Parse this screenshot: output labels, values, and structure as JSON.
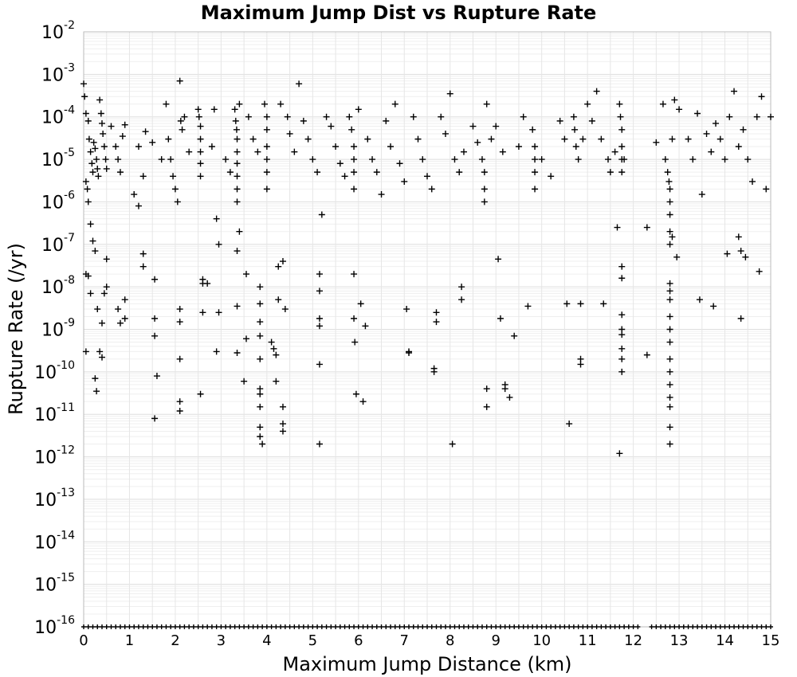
{
  "chart_data": {
    "type": "scatter",
    "title": "Maximum Jump Dist vs Rupture Rate",
    "xlabel": "Maximum Jump Distance (km)",
    "ylabel": "Rupture Rate (/yr)",
    "xlim": [
      0,
      15
    ],
    "ylim": [
      1e-16,
      0.01
    ],
    "yscale": "log",
    "grid": true,
    "marker": "+",
    "marker_color": "#000000",
    "x_ticks": [
      0,
      1,
      2,
      3,
      4,
      5,
      6,
      7,
      8,
      9,
      10,
      11,
      12,
      13,
      14,
      15
    ],
    "x_tick_labels": [
      "0",
      "1",
      "2",
      "3",
      "4",
      "5",
      "6",
      "7",
      "8",
      "9",
      "10",
      "11",
      "12",
      "13",
      "14",
      "15"
    ],
    "y_tick_exponents": [
      -2,
      -3,
      -4,
      -5,
      -6,
      -7,
      -8,
      -9,
      -10,
      -11,
      -12,
      -13,
      -14,
      -15,
      -16
    ],
    "y_tick_base": "10",
    "points": [
      [
        0.0,
        0.0006
      ],
      [
        0.02,
        0.0003
      ],
      [
        0.05,
        0.00012
      ],
      [
        0.1,
        8e-05
      ],
      [
        0.12,
        3e-05
      ],
      [
        0.15,
        1.5e-05
      ],
      [
        0.18,
        8e-06
      ],
      [
        0.2,
        5e-06
      ],
      [
        0.22,
        2.5e-05
      ],
      [
        0.25,
        1.8e-05
      ],
      [
        0.28,
        1e-05
      ],
      [
        0.3,
        6e-06
      ],
      [
        0.32,
        4e-06
      ],
      [
        0.35,
        0.00025
      ],
      [
        0.38,
        0.00012
      ],
      [
        0.4,
        7e-05
      ],
      [
        0.42,
        4e-05
      ],
      [
        0.45,
        2e-05
      ],
      [
        0.48,
        1e-05
      ],
      [
        0.5,
        6e-06
      ],
      [
        0.05,
        3e-06
      ],
      [
        0.08,
        2e-06
      ],
      [
        0.1,
        1e-06
      ],
      [
        0.15,
        3e-07
      ],
      [
        0.2,
        1.2e-07
      ],
      [
        0.25,
        7e-08
      ],
      [
        0.05,
        2e-08
      ],
      [
        0.1,
        1.8e-08
      ],
      [
        0.15,
        7e-09
      ],
      [
        0.3,
        3e-09
      ],
      [
        0.4,
        1.4e-09
      ],
      [
        0.05,
        3e-10
      ],
      [
        0.4,
        2.2e-10
      ],
      [
        0.35,
        3e-10
      ],
      [
        0.25,
        7e-11
      ],
      [
        0.28,
        3.5e-11
      ],
      [
        0.5,
        4.5e-08
      ],
      [
        0.5,
        1e-08
      ],
      [
        0.45,
        7e-09
      ],
      [
        0.6,
        6e-05
      ],
      [
        0.7,
        2e-05
      ],
      [
        0.75,
        1e-05
      ],
      [
        0.8,
        5e-06
      ],
      [
        0.85,
        3.5e-05
      ],
      [
        0.9,
        6.5e-05
      ],
      [
        0.75,
        3e-09
      ],
      [
        0.8,
        1.4e-09
      ],
      [
        0.9,
        5e-09
      ],
      [
        0.9,
        1.8e-09
      ],
      [
        1.1,
        1.5e-06
      ],
      [
        1.2,
        8e-07
      ],
      [
        1.3,
        6e-08
      ],
      [
        1.3,
        3e-08
      ],
      [
        1.3,
        4e-06
      ],
      [
        1.2,
        2e-05
      ],
      [
        1.35,
        4.5e-05
      ],
      [
        1.5,
        2.5e-05
      ],
      [
        1.55,
        1.5e-08
      ],
      [
        1.55,
        1.8e-09
      ],
      [
        1.55,
        7e-10
      ],
      [
        1.6,
        8e-11
      ],
      [
        1.55,
        8e-12
      ],
      [
        1.7,
        1e-05
      ],
      [
        1.8,
        0.0002
      ],
      [
        1.85,
        3e-05
      ],
      [
        1.9,
        1e-05
      ],
      [
        1.95,
        4e-06
      ],
      [
        2.0,
        2e-06
      ],
      [
        2.05,
        1e-06
      ],
      [
        2.1,
        0.0007
      ],
      [
        2.12,
        8e-05
      ],
      [
        2.15,
        5e-05
      ],
      [
        2.1,
        3e-09
      ],
      [
        2.1,
        1.5e-09
      ],
      [
        2.1,
        2e-10
      ],
      [
        2.1,
        2e-11
      ],
      [
        2.1,
        1.2e-11
      ],
      [
        2.2,
        0.0001
      ],
      [
        2.3,
        1.5e-05
      ],
      [
        2.5,
        0.00015
      ],
      [
        2.52,
        0.0001
      ],
      [
        2.55,
        6e-05
      ],
      [
        2.55,
        3e-05
      ],
      [
        2.55,
        1.5e-05
      ],
      [
        2.55,
        8e-06
      ],
      [
        2.55,
        4e-06
      ],
      [
        2.6,
        1.5e-08
      ],
      [
        2.6,
        1.2e-08
      ],
      [
        2.6,
        2.5e-09
      ],
      [
        2.55,
        3e-11
      ],
      [
        2.7,
        1.2e-08
      ],
      [
        2.8,
        2e-05
      ],
      [
        2.85,
        0.00015
      ],
      [
        2.9,
        4e-07
      ],
      [
        2.9,
        3e-10
      ],
      [
        2.95,
        1e-07
      ],
      [
        2.95,
        2.5e-09
      ],
      [
        3.1,
        1e-05
      ],
      [
        3.2,
        5e-06
      ],
      [
        3.3,
        0.00015
      ],
      [
        3.32,
        8e-05
      ],
      [
        3.34,
        5e-05
      ],
      [
        3.35,
        3e-05
      ],
      [
        3.35,
        1.5e-05
      ],
      [
        3.35,
        8e-06
      ],
      [
        3.35,
        4e-06
      ],
      [
        3.35,
        2e-06
      ],
      [
        3.35,
        1e-06
      ],
      [
        3.4,
        2e-07
      ],
      [
        3.35,
        7e-08
      ],
      [
        3.35,
        3.5e-09
      ],
      [
        3.35,
        2.8e-10
      ],
      [
        3.4,
        0.0002
      ],
      [
        3.5,
        6e-11
      ],
      [
        3.55,
        2e-08
      ],
      [
        3.55,
        6e-10
      ],
      [
        3.6,
        0.0001
      ],
      [
        3.7,
        3e-05
      ],
      [
        3.8,
        1.5e-05
      ],
      [
        3.85,
        1e-08
      ],
      [
        3.85,
        4e-09
      ],
      [
        3.85,
        1.5e-09
      ],
      [
        3.85,
        7e-10
      ],
      [
        3.85,
        2e-10
      ],
      [
        3.85,
        4e-11
      ],
      [
        3.85,
        3e-11
      ],
      [
        3.85,
        1.5e-11
      ],
      [
        3.85,
        5e-12
      ],
      [
        3.85,
        3e-12
      ],
      [
        3.9,
        2e-12
      ],
      [
        3.95,
        0.0002
      ],
      [
        4.0,
        0.0001
      ],
      [
        4.0,
        5e-05
      ],
      [
        4.0,
        2e-05
      ],
      [
        4.0,
        1e-05
      ],
      [
        4.0,
        5e-06
      ],
      [
        4.0,
        2e-06
      ],
      [
        4.1,
        5e-10
      ],
      [
        4.15,
        3.5e-10
      ],
      [
        4.2,
        2.5e-10
      ],
      [
        4.2,
        6e-11
      ],
      [
        4.25,
        3e-08
      ],
      [
        4.25,
        5e-09
      ],
      [
        4.3,
        0.0002
      ],
      [
        4.35,
        4e-08
      ],
      [
        4.35,
        1.5e-11
      ],
      [
        4.35,
        6e-12
      ],
      [
        4.35,
        4e-12
      ],
      [
        4.4,
        3e-09
      ],
      [
        4.45,
        0.0001
      ],
      [
        4.5,
        4e-05
      ],
      [
        4.6,
        1.5e-05
      ],
      [
        4.7,
        0.0006
      ],
      [
        4.8,
        8e-05
      ],
      [
        4.9,
        3e-05
      ],
      [
        5.0,
        1e-05
      ],
      [
        5.1,
        5e-06
      ],
      [
        5.15,
        2e-08
      ],
      [
        5.15,
        8e-09
      ],
      [
        5.15,
        1.8e-09
      ],
      [
        5.15,
        1.2e-09
      ],
      [
        5.15,
        1.5e-10
      ],
      [
        5.15,
        2e-12
      ],
      [
        5.2,
        5e-07
      ],
      [
        5.3,
        0.0001
      ],
      [
        5.4,
        6e-05
      ],
      [
        5.5,
        2e-05
      ],
      [
        5.6,
        8e-06
      ],
      [
        5.7,
        4e-06
      ],
      [
        5.8,
        0.0001
      ],
      [
        5.85,
        5e-05
      ],
      [
        5.9,
        2e-05
      ],
      [
        5.9,
        1e-05
      ],
      [
        5.9,
        5e-06
      ],
      [
        5.9,
        2e-06
      ],
      [
        5.9,
        2e-08
      ],
      [
        5.9,
        1.8e-09
      ],
      [
        5.92,
        5e-10
      ],
      [
        5.95,
        3e-11
      ],
      [
        6.0,
        0.00015
      ],
      [
        6.05,
        4e-09
      ],
      [
        6.1,
        2e-11
      ],
      [
        6.15,
        1.2e-09
      ],
      [
        6.2,
        3e-05
      ],
      [
        6.3,
        1e-05
      ],
      [
        6.4,
        5e-06
      ],
      [
        6.5,
        1.5e-06
      ],
      [
        6.6,
        8e-05
      ],
      [
        6.7,
        2e-05
      ],
      [
        6.8,
        0.0002
      ],
      [
        6.9,
        8e-06
      ],
      [
        7.0,
        3e-06
      ],
      [
        7.05,
        3e-09
      ],
      [
        7.1,
        3e-10
      ],
      [
        7.1,
        2.8e-10
      ],
      [
        7.2,
        0.0001
      ],
      [
        7.3,
        3e-05
      ],
      [
        7.4,
        1e-05
      ],
      [
        7.5,
        4e-06
      ],
      [
        7.6,
        2e-06
      ],
      [
        7.65,
        1e-10
      ],
      [
        7.65,
        1.2e-10
      ],
      [
        7.7,
        1.5e-09
      ],
      [
        7.7,
        2.5e-09
      ],
      [
        7.8,
        0.0001
      ],
      [
        7.9,
        4e-05
      ],
      [
        8.0,
        0.00035
      ],
      [
        8.05,
        2e-12
      ],
      [
        8.1,
        1e-05
      ],
      [
        8.2,
        5e-06
      ],
      [
        8.25,
        1e-08
      ],
      [
        8.25,
        5e-09
      ],
      [
        8.3,
        1.5e-05
      ],
      [
        8.5,
        6e-05
      ],
      [
        8.6,
        2.5e-05
      ],
      [
        8.7,
        1e-05
      ],
      [
        8.75,
        5e-06
      ],
      [
        8.75,
        2e-06
      ],
      [
        8.75,
        1e-06
      ],
      [
        8.8,
        0.0002
      ],
      [
        8.8,
        4e-11
      ],
      [
        8.8,
        1.5e-11
      ],
      [
        8.9,
        3e-05
      ],
      [
        9.0,
        6e-05
      ],
      [
        9.05,
        4.5e-08
      ],
      [
        9.1,
        1.8e-09
      ],
      [
        9.15,
        1.5e-05
      ],
      [
        9.2,
        5e-11
      ],
      [
        9.2,
        4e-11
      ],
      [
        9.3,
        2.5e-11
      ],
      [
        9.4,
        7e-10
      ],
      [
        9.5,
        2e-05
      ],
      [
        9.6,
        0.0001
      ],
      [
        9.7,
        3.5e-09
      ],
      [
        9.8,
        5e-05
      ],
      [
        9.85,
        2e-05
      ],
      [
        9.85,
        1e-05
      ],
      [
        9.85,
        5e-06
      ],
      [
        9.85,
        2e-06
      ],
      [
        10.0,
        1e-05
      ],
      [
        10.2,
        4e-06
      ],
      [
        10.4,
        8e-05
      ],
      [
        10.5,
        3e-05
      ],
      [
        10.55,
        4e-09
      ],
      [
        10.6,
        6e-12
      ],
      [
        10.7,
        0.0001
      ],
      [
        10.72,
        5e-05
      ],
      [
        10.75,
        2e-05
      ],
      [
        10.8,
        1e-05
      ],
      [
        10.85,
        4e-09
      ],
      [
        10.85,
        2e-10
      ],
      [
        10.85,
        1.5e-10
      ],
      [
        10.9,
        3e-05
      ],
      [
        11.0,
        0.0002
      ],
      [
        11.1,
        8e-05
      ],
      [
        11.2,
        0.0004
      ],
      [
        11.3,
        3e-05
      ],
      [
        11.35,
        4e-09
      ],
      [
        11.45,
        1e-05
      ],
      [
        11.5,
        5e-06
      ],
      [
        11.6,
        1.5e-05
      ],
      [
        11.65,
        2.5e-07
      ],
      [
        11.7,
        0.0002
      ],
      [
        11.72,
        0.0001
      ],
      [
        11.75,
        5e-05
      ],
      [
        11.75,
        2e-05
      ],
      [
        11.75,
        1e-05
      ],
      [
        11.75,
        5e-06
      ],
      [
        11.75,
        3e-08
      ],
      [
        11.75,
        1.6e-08
      ],
      [
        11.75,
        2.2e-09
      ],
      [
        11.75,
        1e-09
      ],
      [
        11.75,
        7.5e-10
      ],
      [
        11.75,
        3.5e-10
      ],
      [
        11.75,
        2e-10
      ],
      [
        11.75,
        1e-10
      ],
      [
        11.7,
        1.2e-12
      ],
      [
        11.8,
        1e-05
      ],
      [
        12.3,
        2.5e-07
      ],
      [
        12.3,
        2.5e-10
      ],
      [
        12.5,
        2.5e-05
      ],
      [
        12.65,
        0.0002
      ],
      [
        12.7,
        1e-05
      ],
      [
        12.75,
        5e-06
      ],
      [
        12.78,
        3e-06
      ],
      [
        12.8,
        2e-06
      ],
      [
        12.8,
        1e-06
      ],
      [
        12.8,
        5e-07
      ],
      [
        12.8,
        2e-07
      ],
      [
        12.8,
        1e-07
      ],
      [
        12.8,
        1.2e-08
      ],
      [
        12.8,
        8e-09
      ],
      [
        12.8,
        5e-09
      ],
      [
        12.8,
        2e-09
      ],
      [
        12.8,
        1e-09
      ],
      [
        12.8,
        5e-10
      ],
      [
        12.8,
        2e-10
      ],
      [
        12.8,
        1e-10
      ],
      [
        12.8,
        5e-11
      ],
      [
        12.8,
        2.5e-11
      ],
      [
        12.8,
        1.5e-11
      ],
      [
        12.8,
        5e-12
      ],
      [
        12.8,
        2e-12
      ],
      [
        12.85,
        3e-05
      ],
      [
        12.85,
        1.5e-07
      ],
      [
        12.9,
        0.00025
      ],
      [
        12.95,
        5e-08
      ],
      [
        13.0,
        0.00015
      ],
      [
        13.2,
        3e-05
      ],
      [
        13.3,
        1e-05
      ],
      [
        13.4,
        0.00012
      ],
      [
        13.45,
        5e-09
      ],
      [
        13.5,
        1.5e-06
      ],
      [
        13.6,
        4e-05
      ],
      [
        13.7,
        1.5e-05
      ],
      [
        13.75,
        3.5e-09
      ],
      [
        13.8,
        7e-05
      ],
      [
        13.9,
        3e-05
      ],
      [
        14.0,
        1e-05
      ],
      [
        14.05,
        6e-08
      ],
      [
        14.1,
        0.0001
      ],
      [
        14.2,
        0.0004
      ],
      [
        14.3,
        2e-05
      ],
      [
        14.3,
        1.5e-07
      ],
      [
        14.35,
        1.8e-09
      ],
      [
        14.35,
        7e-08
      ],
      [
        14.4,
        5e-05
      ],
      [
        14.45,
        5e-08
      ],
      [
        14.5,
        1e-05
      ],
      [
        14.6,
        3e-06
      ],
      [
        14.7,
        0.0001
      ],
      [
        14.75,
        2.3e-08
      ],
      [
        14.8,
        0.0003
      ],
      [
        14.9,
        2e-06
      ],
      [
        15.0,
        0.0001
      ]
    ],
    "floor_value": 1e-16,
    "floor_x": [
      0.0,
      0.1,
      0.2,
      0.3,
      0.4,
      0.5,
      0.6,
      0.7,
      0.8,
      0.9,
      1.0,
      1.1,
      1.2,
      1.3,
      1.4,
      1.5,
      1.6,
      1.7,
      1.8,
      1.9,
      2.0,
      2.1,
      2.2,
      2.3,
      2.4,
      2.5,
      2.6,
      2.7,
      2.8,
      2.9,
      3.0,
      3.1,
      3.2,
      3.3,
      3.4,
      3.5,
      3.6,
      3.7,
      3.8,
      3.9,
      4.0,
      4.1,
      4.2,
      4.3,
      4.4,
      4.5,
      4.6,
      4.7,
      4.8,
      4.9,
      5.0,
      5.1,
      5.2,
      5.3,
      5.4,
      5.5,
      5.6,
      5.7,
      5.8,
      5.9,
      6.0,
      6.1,
      6.2,
      6.3,
      6.4,
      6.5,
      6.6,
      6.7,
      6.8,
      6.9,
      7.0,
      7.1,
      7.2,
      7.3,
      7.4,
      7.5,
      7.6,
      7.7,
      7.8,
      7.9,
      8.0,
      8.1,
      8.2,
      8.3,
      8.4,
      8.5,
      8.6,
      8.7,
      8.8,
      8.9,
      9.0,
      9.1,
      9.2,
      9.3,
      9.4,
      9.5,
      9.6,
      9.7,
      9.8,
      9.9,
      10.0,
      10.1,
      10.2,
      10.3,
      10.4,
      10.5,
      10.6,
      10.7,
      10.8,
      10.9,
      11.0,
      11.1,
      11.2,
      11.3,
      11.4,
      11.5,
      11.6,
      11.7,
      11.8,
      11.9,
      12.0,
      12.1,
      12.4,
      12.5,
      12.6,
      12.7,
      12.8,
      12.9,
      13.0,
      13.1,
      13.2,
      13.3,
      13.4,
      13.5,
      13.6,
      13.7,
      13.8,
      13.9,
      14.0,
      14.1,
      14.2,
      14.3,
      14.4,
      14.5,
      14.6,
      14.7,
      14.8,
      14.9,
      15.0
    ]
  }
}
